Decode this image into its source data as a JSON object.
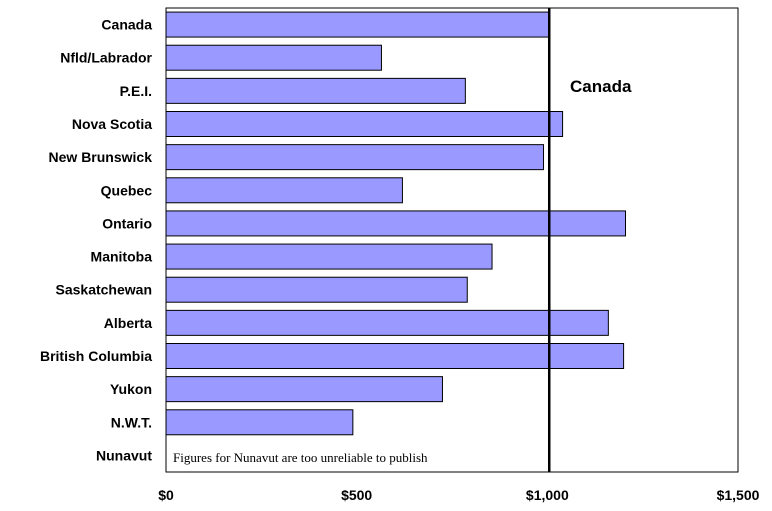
{
  "chart_data": {
    "type": "bar",
    "orientation": "horizontal",
    "categories": [
      "Canada",
      "Nfld/Labrador",
      "P.E.I.",
      "Nova Scotia",
      "New Brunswick",
      "Quebec",
      "Ontario",
      "Manitoba",
      "Saskatchewan",
      "Alberta",
      "British Columbia",
      "Yukon",
      "N.W.T.",
      "Nunavut"
    ],
    "values": [
      1005,
      565,
      785,
      1040,
      990,
      620,
      1205,
      855,
      790,
      1160,
      1200,
      725,
      490,
      null
    ],
    "xlim": [
      0,
      1500
    ],
    "xticks": [
      0,
      500,
      1000,
      1500
    ],
    "xtick_labels": [
      "$0",
      "$500",
      "$1,000",
      "$1,500"
    ],
    "reference_line": {
      "value": 1005,
      "label": "Canada"
    },
    "annotation": "Figures for Nunavut are too unreliable to publish",
    "bar_color": "#9999FF",
    "grid": false
  }
}
